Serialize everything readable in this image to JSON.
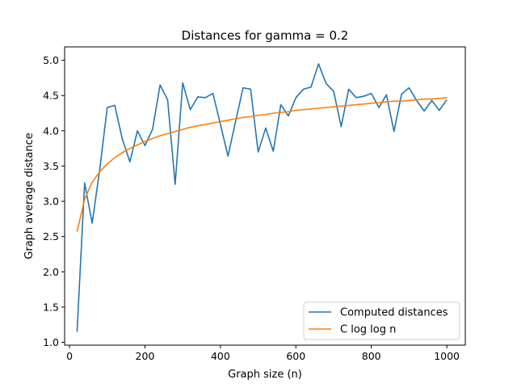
{
  "chart_data": {
    "type": "line",
    "title": "Distances for gamma = 0.2",
    "xlabel": "Graph size (n)",
    "ylabel": "Graph average distance",
    "xlim": [
      -13,
      1049
    ],
    "ylim": [
      0.96,
      5.19
    ],
    "xticks": [
      0,
      200,
      400,
      600,
      800,
      1000
    ],
    "yticks": [
      1.0,
      1.5,
      2.0,
      2.5,
      3.0,
      3.5,
      4.0,
      4.5,
      5.0
    ],
    "grid": false,
    "legend_position": "lower-right",
    "x": [
      20,
      40,
      60,
      80,
      100,
      120,
      140,
      160,
      180,
      200,
      220,
      240,
      260,
      280,
      300,
      320,
      340,
      360,
      380,
      400,
      420,
      440,
      460,
      480,
      500,
      520,
      540,
      560,
      580,
      600,
      620,
      640,
      660,
      680,
      700,
      720,
      740,
      760,
      780,
      800,
      820,
      840,
      860,
      880,
      900,
      920,
      940,
      960,
      980,
      1000
    ],
    "series": [
      {
        "name": "Computed distances",
        "color": "#1f77b4",
        "values": [
          1.15,
          3.26,
          2.69,
          3.45,
          4.33,
          4.36,
          3.88,
          3.56,
          4.0,
          3.79,
          4.02,
          4.65,
          4.44,
          3.24,
          4.68,
          4.3,
          4.48,
          4.47,
          4.53,
          4.09,
          3.64,
          4.13,
          4.61,
          4.59,
          3.7,
          4.04,
          3.71,
          4.37,
          4.21,
          4.47,
          4.59,
          4.62,
          4.95,
          4.67,
          4.56,
          4.06,
          4.59,
          4.47,
          4.49,
          4.53,
          4.33,
          4.51,
          3.99,
          4.52,
          4.61,
          4.43,
          4.28,
          4.43,
          4.29,
          4.44
        ]
      },
      {
        "name": "C log log n",
        "color": "#ff7f0e",
        "values": [
          2.57,
          3.03,
          3.27,
          3.42,
          3.53,
          3.62,
          3.69,
          3.75,
          3.8,
          3.85,
          3.89,
          3.93,
          3.96,
          3.99,
          4.02,
          4.05,
          4.07,
          4.09,
          4.11,
          4.13,
          4.15,
          4.17,
          4.19,
          4.2,
          4.22,
          4.23,
          4.25,
          4.26,
          4.27,
          4.29,
          4.3,
          4.31,
          4.32,
          4.33,
          4.34,
          4.35,
          4.36,
          4.37,
          4.38,
          4.39,
          4.4,
          4.41,
          4.42,
          4.42,
          4.43,
          4.44,
          4.45,
          4.45,
          4.46,
          4.47
        ]
      }
    ]
  }
}
